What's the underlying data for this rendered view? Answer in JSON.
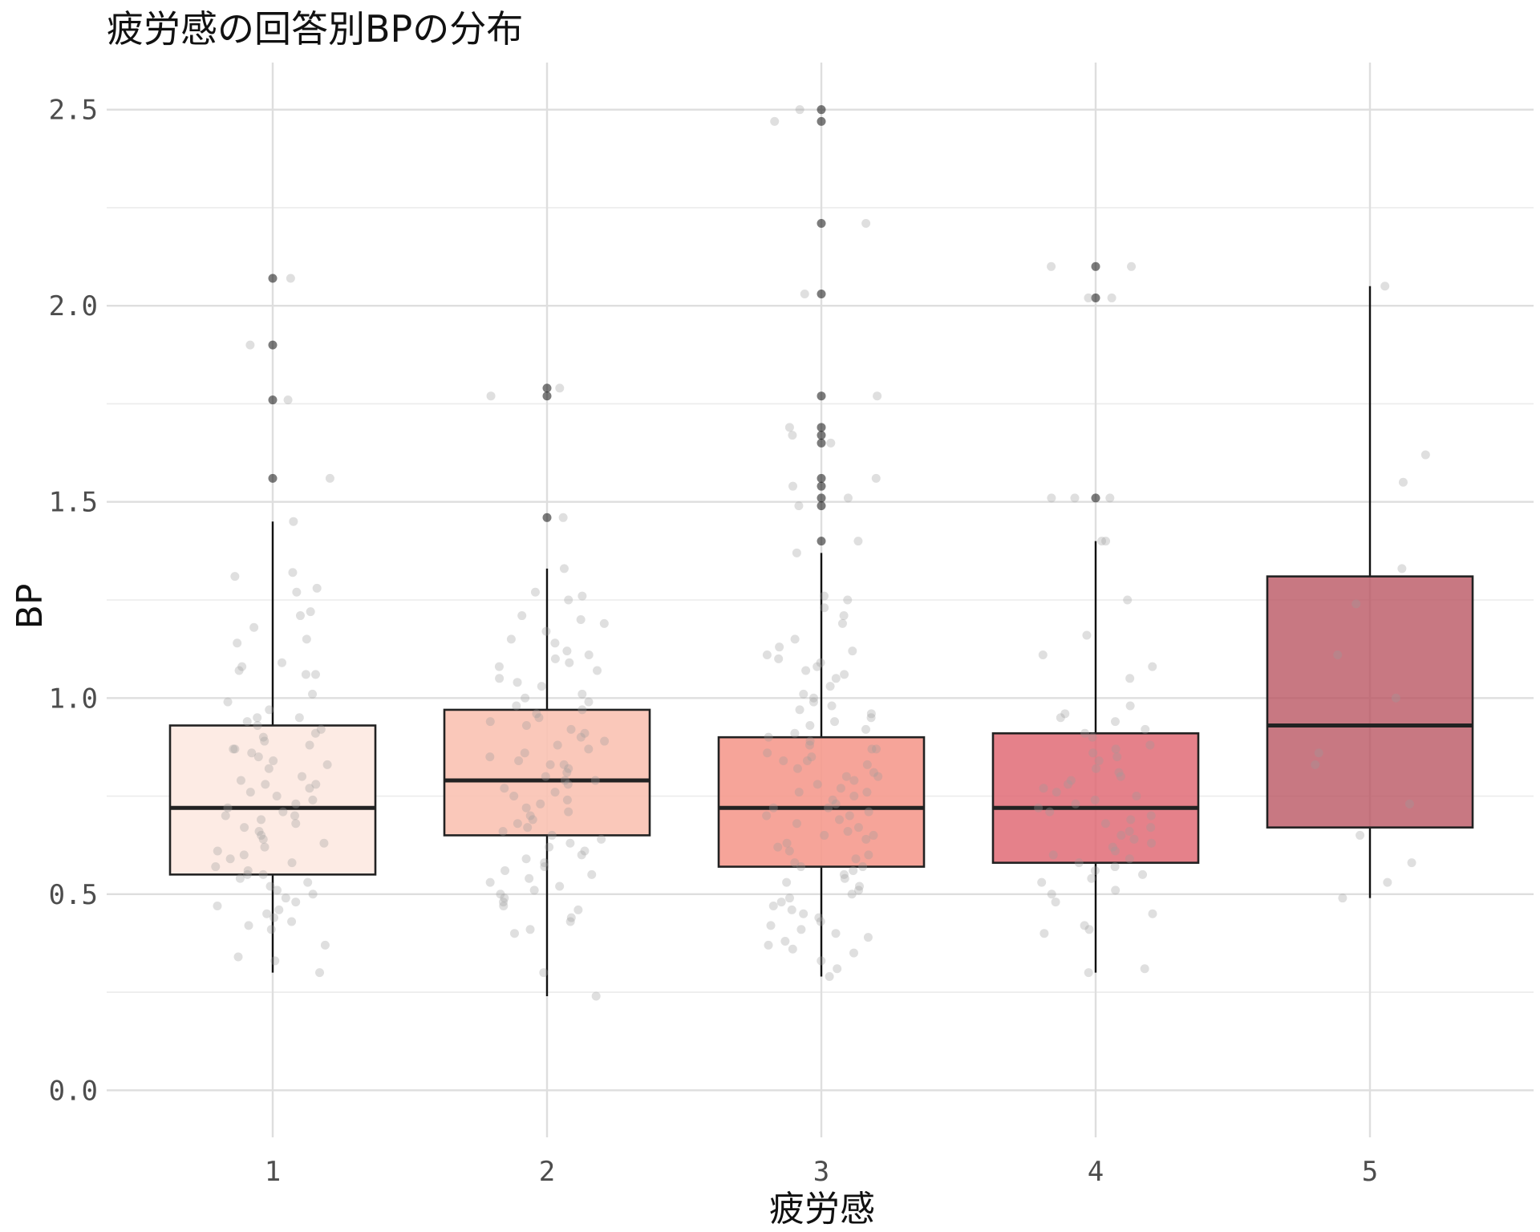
{
  "chart_data": {
    "type": "box",
    "title": "疲労感の回答別BPの分布",
    "xlabel": "疲労感",
    "ylabel": "BP",
    "categories": [
      "1",
      "2",
      "3",
      "4",
      "5"
    ],
    "ylim": [
      -0.12,
      2.62
    ],
    "yticks": [
      0.0,
      0.5,
      1.0,
      1.5,
      2.0,
      2.5
    ],
    "ytick_labels": [
      "0.0",
      "0.5",
      "1.0",
      "1.5",
      "2.0",
      "2.5"
    ],
    "grid": true,
    "legend": "none",
    "fill_colors": [
      "#fdebe4",
      "#fac2b2",
      "#f59a8e",
      "#e06b76",
      "#b9525f"
    ],
    "box_opacity": [
      1.0,
      0.9,
      0.9,
      0.85,
      0.78
    ],
    "boxes": [
      {
        "category": "1",
        "q1": 0.55,
        "median": 0.72,
        "q3": 0.93,
        "whisker_low": 0.3,
        "whisker_high": 1.45,
        "outliers": [
          2.07,
          1.9,
          1.76,
          1.56
        ]
      },
      {
        "category": "2",
        "q1": 0.65,
        "median": 0.79,
        "q3": 0.97,
        "whisker_low": 0.24,
        "whisker_high": 1.33,
        "outliers": [
          1.79,
          1.77,
          1.46
        ]
      },
      {
        "category": "3",
        "q1": 0.57,
        "median": 0.72,
        "q3": 0.9,
        "whisker_low": 0.29,
        "whisker_high": 1.37,
        "outliers": [
          2.5,
          2.47,
          2.21,
          2.03,
          1.77,
          1.69,
          1.67,
          1.65,
          1.56,
          1.54,
          1.51,
          1.49,
          1.4
        ]
      },
      {
        "category": "4",
        "q1": 0.58,
        "median": 0.72,
        "q3": 0.91,
        "whisker_low": 0.3,
        "whisker_high": 1.4,
        "outliers": [
          2.1,
          2.02,
          1.51
        ]
      },
      {
        "category": "5",
        "q1": 0.67,
        "median": 0.93,
        "q3": 1.31,
        "whisker_low": 0.49,
        "whisker_high": 2.05,
        "outliers": []
      }
    ],
    "points": [
      {
        "category": "1",
        "values": [
          2.07,
          1.9,
          1.76,
          1.56,
          1.45,
          1.32,
          1.31,
          1.28,
          1.27,
          1.22,
          1.21,
          1.18,
          1.15,
          1.14,
          1.09,
          1.08,
          1.07,
          1.06,
          1.06,
          1.01,
          0.99,
          0.97,
          0.95,
          0.95,
          0.94,
          0.93,
          0.92,
          0.91,
          0.9,
          0.89,
          0.88,
          0.87,
          0.87,
          0.86,
          0.85,
          0.84,
          0.83,
          0.82,
          0.8,
          0.79,
          0.78,
          0.78,
          0.77,
          0.76,
          0.75,
          0.74,
          0.73,
          0.72,
          0.71,
          0.7,
          0.7,
          0.69,
          0.68,
          0.67,
          0.66,
          0.65,
          0.64,
          0.63,
          0.62,
          0.61,
          0.6,
          0.59,
          0.58,
          0.57,
          0.56,
          0.55,
          0.55,
          0.54,
          0.53,
          0.52,
          0.51,
          0.5,
          0.49,
          0.48,
          0.47,
          0.46,
          0.45,
          0.44,
          0.43,
          0.42,
          0.41,
          0.37,
          0.34,
          0.33,
          0.3
        ]
      },
      {
        "category": "2",
        "values": [
          1.79,
          1.77,
          1.46,
          1.33,
          1.27,
          1.26,
          1.25,
          1.21,
          1.2,
          1.19,
          1.17,
          1.15,
          1.14,
          1.12,
          1.11,
          1.1,
          1.09,
          1.08,
          1.07,
          1.05,
          1.04,
          1.03,
          1.01,
          1.0,
          0.99,
          0.98,
          0.97,
          0.96,
          0.95,
          0.94,
          0.93,
          0.92,
          0.91,
          0.9,
          0.89,
          0.88,
          0.87,
          0.86,
          0.85,
          0.84,
          0.83,
          0.83,
          0.82,
          0.81,
          0.8,
          0.79,
          0.79,
          0.78,
          0.77,
          0.76,
          0.75,
          0.74,
          0.73,
          0.72,
          0.71,
          0.7,
          0.69,
          0.68,
          0.67,
          0.66,
          0.65,
          0.64,
          0.63,
          0.62,
          0.61,
          0.6,
          0.59,
          0.58,
          0.57,
          0.56,
          0.55,
          0.54,
          0.53,
          0.52,
          0.51,
          0.5,
          0.49,
          0.48,
          0.47,
          0.46,
          0.44,
          0.43,
          0.41,
          0.4,
          0.3,
          0.24
        ]
      },
      {
        "category": "3",
        "values": [
          2.5,
          2.47,
          2.21,
          2.03,
          1.77,
          1.69,
          1.67,
          1.65,
          1.56,
          1.54,
          1.51,
          1.49,
          1.4,
          1.37,
          1.26,
          1.25,
          1.23,
          1.21,
          1.19,
          1.15,
          1.13,
          1.12,
          1.11,
          1.1,
          1.09,
          1.08,
          1.07,
          1.06,
          1.05,
          1.03,
          1.01,
          1.0,
          0.99,
          0.98,
          0.97,
          0.96,
          0.95,
          0.94,
          0.93,
          0.92,
          0.91,
          0.9,
          0.89,
          0.88,
          0.87,
          0.87,
          0.86,
          0.85,
          0.84,
          0.84,
          0.83,
          0.82,
          0.81,
          0.8,
          0.8,
          0.79,
          0.78,
          0.77,
          0.76,
          0.76,
          0.75,
          0.74,
          0.73,
          0.72,
          0.72,
          0.71,
          0.7,
          0.7,
          0.69,
          0.68,
          0.67,
          0.66,
          0.65,
          0.65,
          0.64,
          0.63,
          0.62,
          0.61,
          0.6,
          0.59,
          0.58,
          0.57,
          0.57,
          0.56,
          0.55,
          0.54,
          0.53,
          0.52,
          0.51,
          0.5,
          0.49,
          0.48,
          0.47,
          0.46,
          0.45,
          0.44,
          0.43,
          0.42,
          0.41,
          0.4,
          0.39,
          0.38,
          0.37,
          0.36,
          0.35,
          0.33,
          0.31,
          0.29
        ]
      },
      {
        "category": "4",
        "values": [
          2.1,
          2.1,
          2.02,
          2.02,
          1.51,
          1.51,
          1.51,
          1.4,
          1.4,
          1.25,
          1.16,
          1.11,
          1.08,
          1.05,
          0.98,
          0.96,
          0.95,
          0.94,
          0.92,
          0.91,
          0.9,
          0.88,
          0.87,
          0.86,
          0.85,
          0.84,
          0.82,
          0.81,
          0.8,
          0.79,
          0.78,
          0.77,
          0.76,
          0.75,
          0.74,
          0.73,
          0.72,
          0.71,
          0.7,
          0.69,
          0.68,
          0.67,
          0.66,
          0.65,
          0.64,
          0.63,
          0.62,
          0.61,
          0.6,
          0.59,
          0.58,
          0.57,
          0.56,
          0.55,
          0.54,
          0.53,
          0.51,
          0.5,
          0.48,
          0.45,
          0.42,
          0.41,
          0.4,
          0.31,
          0.3
        ]
      },
      {
        "category": "5",
        "values": [
          2.05,
          1.62,
          1.55,
          1.33,
          1.24,
          1.11,
          1.0,
          0.86,
          0.83,
          0.73,
          0.65,
          0.58,
          0.53,
          0.49
        ]
      }
    ]
  }
}
